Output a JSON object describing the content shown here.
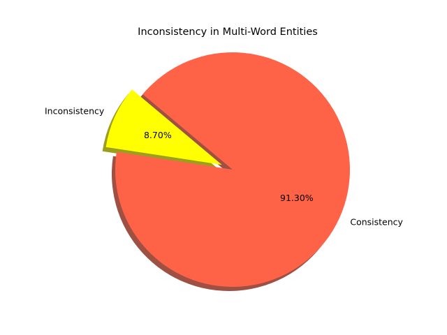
{
  "chart_data": {
    "type": "pie",
    "title": "Inconsistency in Multi-Word Entities",
    "slices": [
      {
        "label": "Inconsistency",
        "value": 8.7,
        "pct_label": "8.70%",
        "color": "#ffff00",
        "exploded": true
      },
      {
        "label": "Consistency",
        "value": 91.3,
        "pct_label": "91.30%",
        "color": "#ff6347",
        "exploded": false
      }
    ],
    "start_angle_deg": 140,
    "shadow": true,
    "legend": "none"
  }
}
